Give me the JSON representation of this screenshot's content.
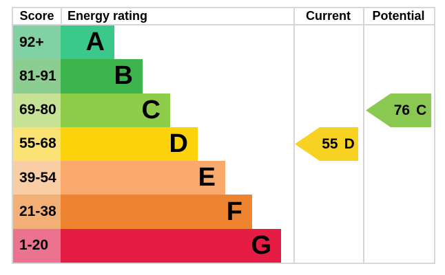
{
  "header": {
    "score": "Score",
    "energy_rating": "Energy rating",
    "current": "Current",
    "potential": "Potential"
  },
  "bands": [
    {
      "letter": "A",
      "score": "92+",
      "color": "#3bc98b",
      "tint": "#81d1a4"
    },
    {
      "letter": "B",
      "score": "81-91",
      "color": "#3eb54c",
      "tint": "#8ccd92"
    },
    {
      "letter": "C",
      "score": "69-80",
      "color": "#8ecd49",
      "tint": "#c5e295"
    },
    {
      "letter": "D",
      "score": "55-68",
      "color": "#fcd20c",
      "tint": "#f9e273"
    },
    {
      "letter": "E",
      "score": "39-54",
      "color": "#f8a96b",
      "tint": "#f9cea4"
    },
    {
      "letter": "F",
      "score": "21-38",
      "color": "#ee8430",
      "tint": "#f2b077"
    },
    {
      "letter": "G",
      "score": "1-20",
      "color": "#e51c43",
      "tint": "#eb738f"
    }
  ],
  "current": {
    "value": "55",
    "band": "D",
    "color": "#f8d222"
  },
  "potential": {
    "value": "76",
    "band": "C",
    "color": "#8bc852"
  },
  "border_color": "#d7d7d7",
  "chart_data": {
    "type": "bar",
    "title": "EPC energy efficiency rating chart",
    "categories": [
      "A",
      "B",
      "C",
      "D",
      "E",
      "F",
      "G"
    ],
    "band_score_ranges": [
      "92+",
      "81-91",
      "69-80",
      "55-68",
      "39-54",
      "21-38",
      "1-20"
    ],
    "band_colors": [
      "#3bc98b",
      "#3eb54c",
      "#8ecd49",
      "#fcd20c",
      "#f8a96b",
      "#ee8430",
      "#e51c43"
    ],
    "columns": [
      "Score",
      "Energy rating",
      "Current",
      "Potential"
    ],
    "current_rating": {
      "value": 55,
      "band": "D"
    },
    "potential_rating": {
      "value": 76,
      "band": "C"
    },
    "legend_position": "none",
    "grid": false
  }
}
